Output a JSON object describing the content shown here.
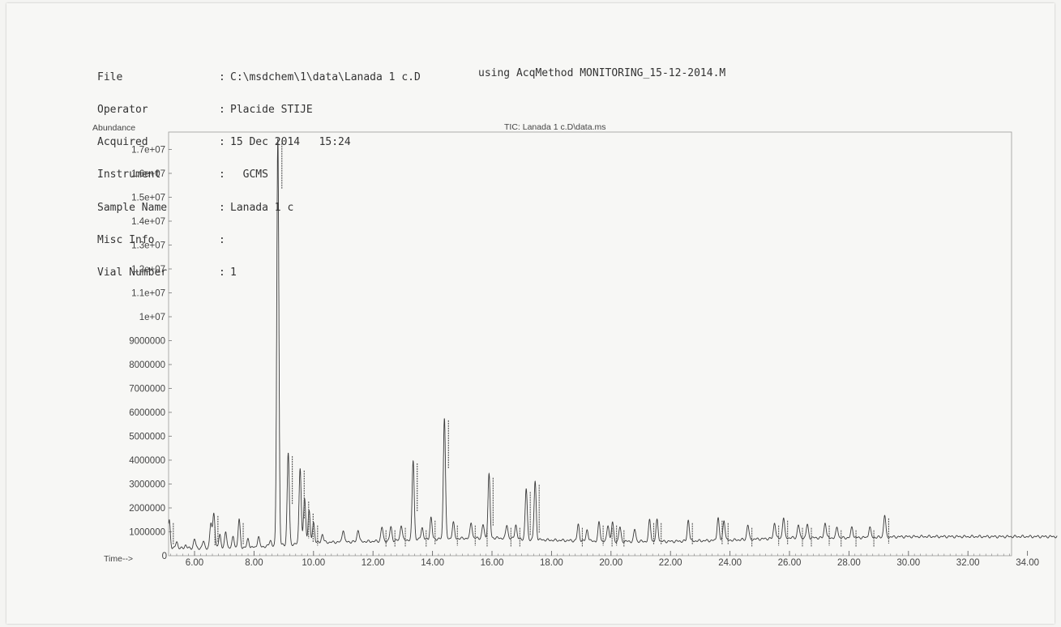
{
  "header": {
    "file_label": "File",
    "file_value": "C:\\msdchem\\1\\data\\Lanada 1 c.D",
    "operator_label": "Operator",
    "operator_value": "Placide STIJE",
    "acquired_label": "Acquired",
    "acquired_value": "15 Dec 2014   15:24",
    "method_text": "using AcqMethod MONITORING_15-12-2014.M",
    "instrument_label": "Instrument",
    "instrument_value": "  GCMS",
    "sample_label": "Sample Name",
    "sample_value": "Lanada 1 c",
    "misc_label": "Misc Info",
    "misc_value": "",
    "vial_label": "Vial Number",
    "vial_value": "1"
  },
  "chart_data": {
    "type": "line",
    "title": "TIC: Lanada 1 c.D\\data.ms",
    "ylabel": "Abundance",
    "xlabel": "Time-->",
    "xlim": [
      5.0,
      35.0
    ],
    "ylim": [
      0,
      17500000
    ],
    "x_ticks": [
      6,
      8,
      10,
      12,
      14,
      16,
      18,
      20,
      22,
      24,
      26,
      28,
      30,
      32,
      34
    ],
    "x_tick_labels": [
      "6.00",
      "8.00",
      "10.00",
      "12.00",
      "14.00",
      "16.00",
      "18.00",
      "20.00",
      "22.00",
      "24.00",
      "26.00",
      "28.00",
      "30.00",
      "32.00",
      "34.00"
    ],
    "y_ticks": [
      1000000,
      2000000,
      3000000,
      4000000,
      5000000,
      6000000,
      7000000,
      8000000,
      9000000,
      10000000,
      11000000,
      12000000,
      13000000,
      14000000,
      15000000,
      16000000,
      17000000
    ],
    "y_tick_labels": [
      "1000000",
      "2000000",
      "3000000",
      "4000000",
      "5000000",
      "6000000",
      "7000000",
      "8000000",
      "9000000",
      "1e+07",
      "1.1e+07",
      "1.2e+07",
      "1.3e+07",
      "1.4e+07",
      "1.5e+07",
      "1.6e+07",
      "1.7e+07"
    ],
    "y_zero_label": "0",
    "baseline": [
      [
        5.0,
        300000
      ],
      [
        8.0,
        350000
      ],
      [
        10.0,
        550000
      ],
      [
        12.0,
        600000
      ],
      [
        14.0,
        700000
      ],
      [
        16.0,
        750000
      ],
      [
        18.0,
        650000
      ],
      [
        20.0,
        600000
      ],
      [
        22.0,
        600000
      ],
      [
        24.0,
        650000
      ],
      [
        26.0,
        750000
      ],
      [
        28.0,
        750000
      ],
      [
        30.0,
        800000
      ],
      [
        35.0,
        800000
      ]
    ],
    "peaks": [
      {
        "rt": 5.15,
        "height": 1500000
      },
      {
        "rt": 5.4,
        "height": 600000
      },
      {
        "rt": 5.7,
        "height": 450000
      },
      {
        "rt": 6.0,
        "height": 700000
      },
      {
        "rt": 6.3,
        "height": 600000
      },
      {
        "rt": 6.55,
        "height": 1350000
      },
      {
        "rt": 6.65,
        "height": 1800000
      },
      {
        "rt": 6.85,
        "height": 900000
      },
      {
        "rt": 7.05,
        "height": 1000000
      },
      {
        "rt": 7.3,
        "height": 800000
      },
      {
        "rt": 7.5,
        "height": 1500000
      },
      {
        "rt": 7.8,
        "height": 700000
      },
      {
        "rt": 8.15,
        "height": 800000
      },
      {
        "rt": 8.55,
        "height": 650000
      },
      {
        "rt": 8.8,
        "height": 17500000
      },
      {
        "rt": 9.15,
        "height": 4300000
      },
      {
        "rt": 9.55,
        "height": 3700000
      },
      {
        "rt": 9.7,
        "height": 2400000
      },
      {
        "rt": 9.85,
        "height": 1900000
      },
      {
        "rt": 10.0,
        "height": 1400000
      },
      {
        "rt": 10.3,
        "height": 900000
      },
      {
        "rt": 11.0,
        "height": 1100000
      },
      {
        "rt": 11.5,
        "height": 1100000
      },
      {
        "rt": 12.3,
        "height": 1200000
      },
      {
        "rt": 12.6,
        "height": 1200000
      },
      {
        "rt": 12.95,
        "height": 1300000
      },
      {
        "rt": 13.35,
        "height": 4000000
      },
      {
        "rt": 13.65,
        "height": 1200000
      },
      {
        "rt": 13.95,
        "height": 1600000
      },
      {
        "rt": 14.4,
        "height": 5800000
      },
      {
        "rt": 14.7,
        "height": 1400000
      },
      {
        "rt": 15.3,
        "height": 1400000
      },
      {
        "rt": 15.7,
        "height": 1300000
      },
      {
        "rt": 15.9,
        "height": 3400000
      },
      {
        "rt": 16.5,
        "height": 1300000
      },
      {
        "rt": 16.8,
        "height": 1300000
      },
      {
        "rt": 17.15,
        "height": 2800000
      },
      {
        "rt": 17.45,
        "height": 3100000
      },
      {
        "rt": 18.9,
        "height": 1300000
      },
      {
        "rt": 19.2,
        "height": 1100000
      },
      {
        "rt": 19.6,
        "height": 1400000
      },
      {
        "rt": 19.9,
        "height": 1300000
      },
      {
        "rt": 20.05,
        "height": 1400000
      },
      {
        "rt": 20.3,
        "height": 1200000
      },
      {
        "rt": 20.8,
        "height": 1100000
      },
      {
        "rt": 21.3,
        "height": 1500000
      },
      {
        "rt": 21.55,
        "height": 1500000
      },
      {
        "rt": 22.6,
        "height": 1500000
      },
      {
        "rt": 23.6,
        "height": 1600000
      },
      {
        "rt": 23.8,
        "height": 1500000
      },
      {
        "rt": 24.6,
        "height": 1300000
      },
      {
        "rt": 25.5,
        "height": 1400000
      },
      {
        "rt": 25.8,
        "height": 1600000
      },
      {
        "rt": 26.3,
        "height": 1300000
      },
      {
        "rt": 26.6,
        "height": 1300000
      },
      {
        "rt": 27.2,
        "height": 1400000
      },
      {
        "rt": 27.6,
        "height": 1200000
      },
      {
        "rt": 28.1,
        "height": 1200000
      },
      {
        "rt": 28.7,
        "height": 1200000
      },
      {
        "rt": 29.2,
        "height": 1700000
      }
    ]
  }
}
